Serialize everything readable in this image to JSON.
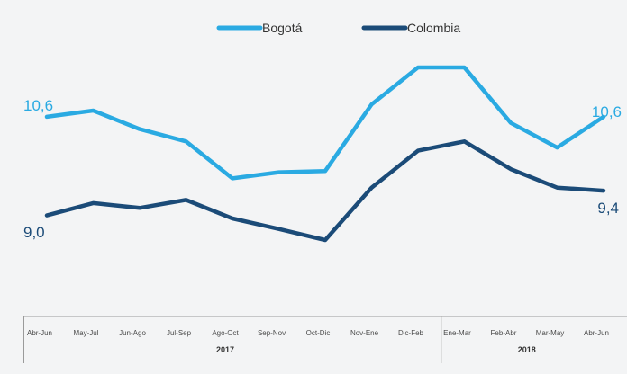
{
  "chart_data": {
    "type": "line",
    "categories": [
      "Abr-Jun",
      "May-Jul",
      "Jun-Ago",
      "Jul-Sep",
      "Ago-Oct",
      "Sep-Nov",
      "Oct-Dic",
      "Nov-Ene",
      "Dic-Feb",
      "Ene-Mar",
      "Feb-Abr",
      "Mar-May",
      "Abr-Jun"
    ],
    "groups": [
      {
        "label": "2017",
        "categories": 9
      },
      {
        "label": "2018",
        "categories": 4
      }
    ],
    "series": [
      {
        "name": "Bogotá",
        "color": "#2aaae2",
        "values": [
          10.6,
          10.7,
          10.4,
          10.2,
          9.6,
          9.7,
          9.72,
          10.8,
          11.4,
          11.4,
          10.5,
          10.1,
          10.6
        ]
      },
      {
        "name": "Colombia",
        "color": "#1b4b78",
        "values": [
          9.0,
          9.2,
          9.12,
          9.25,
          8.95,
          8.78,
          8.6,
          9.45,
          10.05,
          10.2,
          9.75,
          9.45,
          9.4
        ]
      }
    ],
    "data_labels": [
      {
        "text": "10,6",
        "series": 0,
        "index": 0
      },
      {
        "text": "10,6",
        "series": 0,
        "index": 12
      },
      {
        "text": "9,0",
        "series": 1,
        "index": 0
      },
      {
        "text": "9,4",
        "series": 1,
        "index": 12
      }
    ],
    "ylim": [
      6.0,
      11.8
    ],
    "legend_position": "top-center",
    "grid": false
  }
}
